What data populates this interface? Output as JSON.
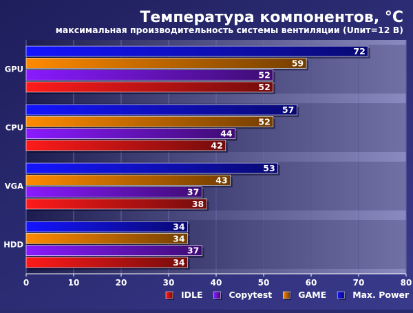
{
  "chart_data": {
    "type": "bar",
    "orientation": "horizontal",
    "title": "Температура компонентов, °C",
    "subtitle": "максимальная производительность системы вентиляции (Uпит=12 В)",
    "categories": [
      "GPU",
      "CPU",
      "VGA",
      "HDD"
    ],
    "series": [
      {
        "name": "Max. Power",
        "values": [
          72,
          57,
          53,
          34
        ],
        "color": "#1414ff"
      },
      {
        "name": "GAME",
        "values": [
          59,
          52,
          43,
          34
        ],
        "color": "#ff8a00"
      },
      {
        "name": "Copytest",
        "values": [
          52,
          44,
          37,
          37
        ],
        "color": "#8a1aff"
      },
      {
        "name": "IDLE",
        "values": [
          52,
          42,
          38,
          34
        ],
        "color": "#ff1a1a"
      }
    ],
    "legend_order": [
      "IDLE",
      "Copytest",
      "GAME",
      "Max. Power"
    ],
    "xlim": [
      0,
      80
    ],
    "xticks": [
      0,
      10,
      20,
      30,
      40,
      50,
      60,
      70,
      80
    ],
    "grid": true,
    "legend_position": "bottom-right"
  }
}
